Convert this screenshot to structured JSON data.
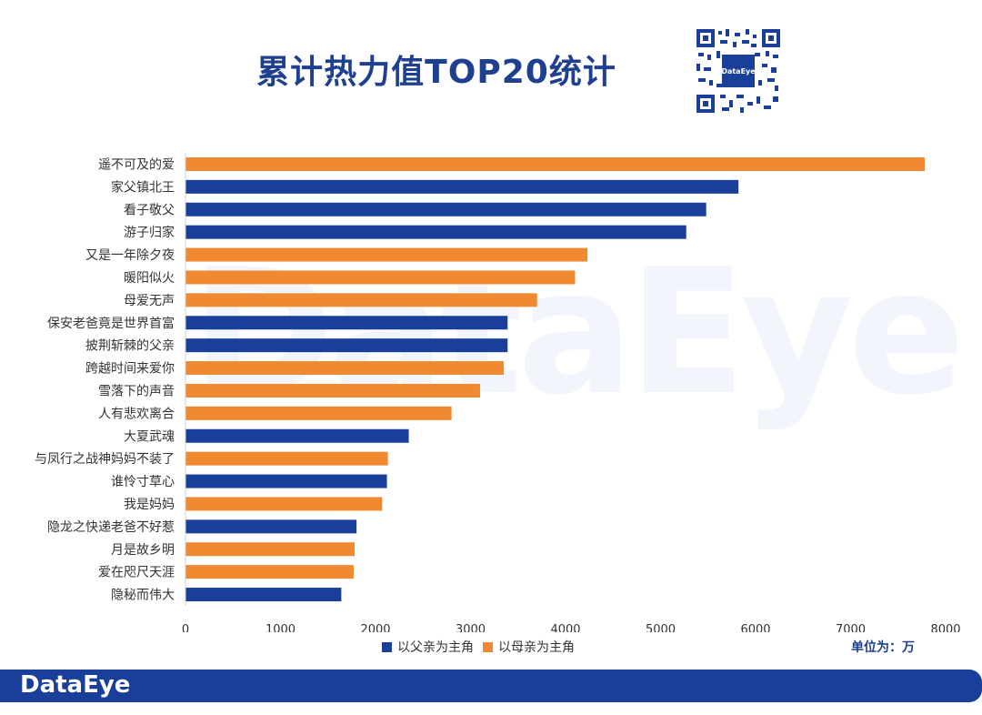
{
  "title": "累计热力值TOP20统计",
  "unit_label": "单位为：万",
  "brand": "DataEye",
  "qr_label": "DataEye",
  "colors": {
    "father": "#1a3f9a",
    "mother": "#f0892f",
    "title": "#1f3f8f"
  },
  "legend": [
    {
      "name": "以父亲为主角",
      "color": "#1a3f9a"
    },
    {
      "name": "以母亲为主角",
      "color": "#f0892f"
    }
  ],
  "chart_data": {
    "type": "bar",
    "orientation": "horizontal",
    "title": "累计热力值TOP20统计",
    "xlim": [
      0,
      8000
    ],
    "xticks": [
      0,
      1000,
      2000,
      3000,
      4000,
      5000,
      6000,
      7000,
      8000
    ],
    "grid": false,
    "legend_position": "bottom",
    "categories": [
      "遥不可及的爱",
      "家父镇北王",
      "看子敬父",
      "游子归家",
      "又是一年除夕夜",
      "暖阳似火",
      "母爱无声",
      "保安老爸竟是世界首富",
      "披荆斩棘的父亲",
      "跨越时间来爱你",
      "雪落下的声音",
      "人有悲欢离合",
      "大夏武魂",
      "与凤行之战神妈妈不装了",
      "谁怜寸草心",
      "我是妈妈",
      "隐龙之快递老爸不好惹",
      "月是故乡明",
      "爱在咫尺天涯",
      "隐秘而伟大"
    ],
    "values": [
      7780,
      5820,
      5480,
      5270,
      4230,
      4100,
      3700,
      3390,
      3390,
      3350,
      3100,
      2800,
      2350,
      2130,
      2120,
      2070,
      1800,
      1780,
      1770,
      1640
    ],
    "series_membership": [
      "以母亲为主角",
      "以父亲为主角",
      "以父亲为主角",
      "以父亲为主角",
      "以母亲为主角",
      "以母亲为主角",
      "以母亲为主角",
      "以父亲为主角",
      "以父亲为主角",
      "以母亲为主角",
      "以母亲为主角",
      "以母亲为主角",
      "以父亲为主角",
      "以母亲为主角",
      "以父亲为主角",
      "以母亲为主角",
      "以父亲为主角",
      "以母亲为主角",
      "以母亲为主角",
      "以父亲为主角"
    ]
  }
}
